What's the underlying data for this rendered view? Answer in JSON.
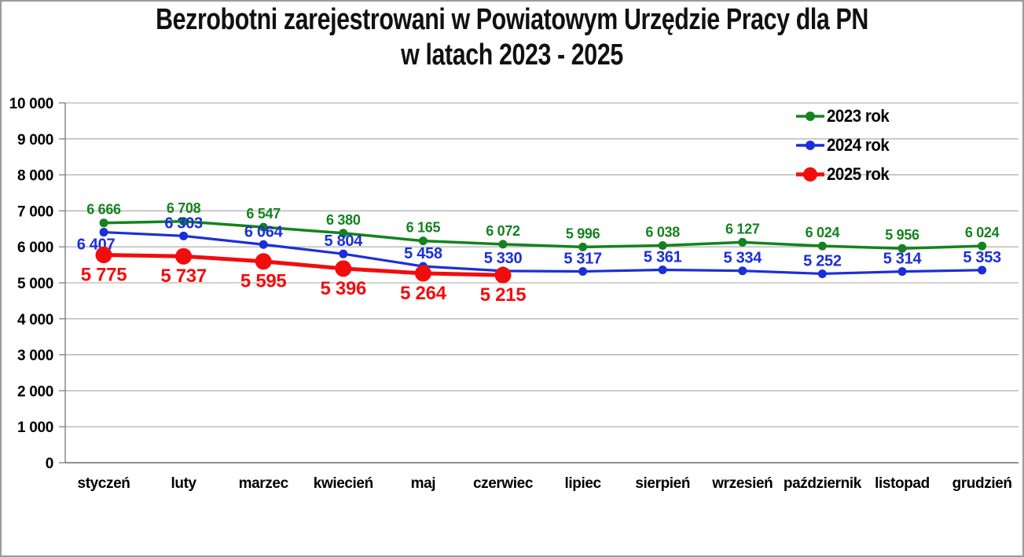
{
  "title": {
    "line1": "Bezrobotni zarejestrowani w Powiatowym Urzędzie Pracy dla PN",
    "line2": "w latach 2023 - 2025"
  },
  "chart_data": {
    "type": "line",
    "title": "Bezrobotni zarejestrowani w Powiatowym Urzędzie Pracy dla PN w latach 2023 - 2025",
    "xlabel": "",
    "ylabel": "",
    "categories": [
      "styczeń",
      "luty",
      "marzec",
      "kwiecień",
      "maj",
      "czerwiec",
      "lipiec",
      "sierpień",
      "wrzesień",
      "październik",
      "listopad",
      "grudzień"
    ],
    "series": [
      {
        "name": "2023 rok",
        "color": "#15821F",
        "values": [
          6666,
          6708,
          6547,
          6380,
          6165,
          6072,
          5996,
          6038,
          6127,
          6024,
          5956,
          6024
        ]
      },
      {
        "name": "2024 rok",
        "color": "#1B2FD8",
        "values": [
          6407,
          6303,
          6064,
          5804,
          5458,
          5330,
          5317,
          5361,
          5334,
          5252,
          5314,
          5353
        ]
      },
      {
        "name": "2025 rok",
        "color": "#F20D0D",
        "values": [
          5775,
          5737,
          5595,
          5396,
          5264,
          5215
        ]
      }
    ],
    "ylim": [
      0,
      10000
    ],
    "ytick_step": 1000,
    "ytick_labels": [
      "0",
      "1 000",
      "2 000",
      "3 000",
      "4 000",
      "5 000",
      "6 000",
      "7 000",
      "8 000",
      "9 000",
      "10 000"
    ],
    "grid": true,
    "data_labels": true,
    "number_format": "space-thousands",
    "legend_position": "top-right"
  },
  "colors": {
    "gridline": "#A6A6A6",
    "axis": "#808080",
    "border": "#9B9B9B",
    "label_text": "#000000",
    "background": "#FFFFFF"
  }
}
